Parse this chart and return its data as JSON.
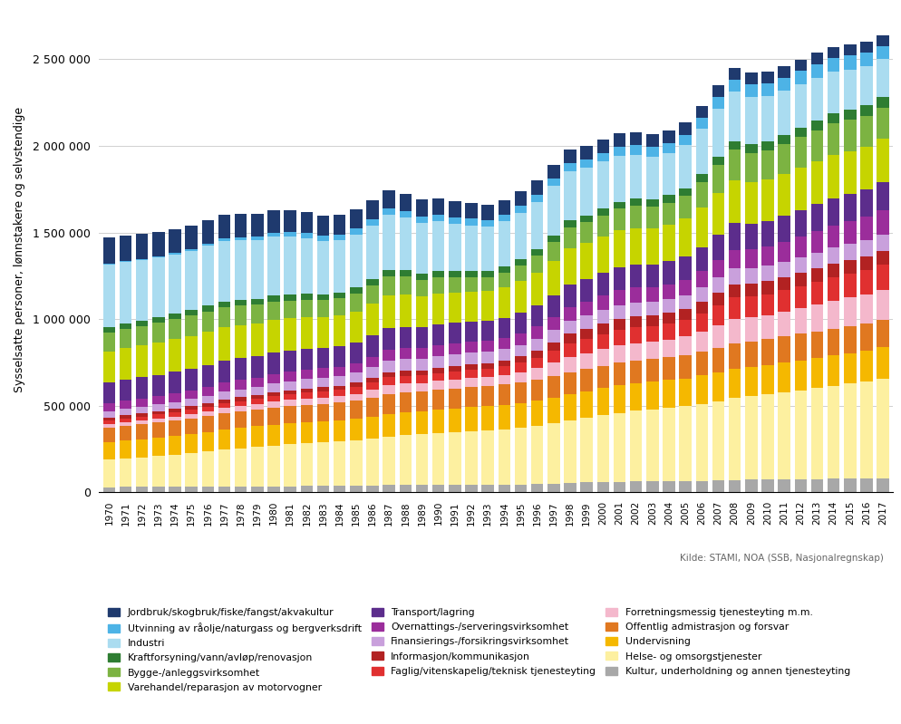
{
  "years": [
    1970,
    1971,
    1972,
    1973,
    1974,
    1975,
    1976,
    1977,
    1978,
    1979,
    1980,
    1981,
    1982,
    1983,
    1984,
    1985,
    1986,
    1987,
    1988,
    1989,
    1990,
    1991,
    1992,
    1993,
    1994,
    1995,
    1996,
    1997,
    1998,
    1999,
    2000,
    2001,
    2002,
    2003,
    2004,
    2005,
    2006,
    2007,
    2008,
    2009,
    2010,
    2011,
    2012,
    2013,
    2014,
    2015,
    2016,
    2017
  ],
  "series_order": [
    "Kultur, underholdning og annen tjenesteyting",
    "Helse- og omsorgstjenester",
    "Undervisning",
    "Offentlig admistrasjon og forsvar",
    "Forretningsmessig tjenesteyting m.m.",
    "Faglig/vitenskapelig/teknisk tjenesteyting",
    "Informasjon/kommunikasjon",
    "Finansierings-/forsikringsvirksomhet",
    "Overnattings-/serveringsvirksomhet",
    "Transport/lagring",
    "Varehandel/reparasjon av motorvogner",
    "Bygge-/anleggsvirksomhet",
    "Kraftforsyning/vann/avløp/renovasjon",
    "Industri",
    "Utvinning av råolje/naturgass og bergverksdrift",
    "Jordbruk/skogbruk/fiske/fangst/akvakultur"
  ],
  "series": [
    {
      "name": "Jordbruk/skogbruk/fiske/fangst/akvakultur",
      "color": "#1f3a6e",
      "values": [
        150000,
        148000,
        144000,
        142000,
        140000,
        138000,
        136000,
        134000,
        132000,
        130000,
        127000,
        124000,
        121000,
        118000,
        115000,
        112000,
        109000,
        106000,
        103000,
        100000,
        97000,
        94000,
        91000,
        88000,
        86000,
        84000,
        82000,
        80000,
        79000,
        78000,
        77000,
        76000,
        75000,
        74000,
        73000,
        72000,
        71000,
        70000,
        69000,
        68000,
        67000,
        66000,
        65000,
        64000,
        63000,
        62000,
        61000,
        60000
      ]
    },
    {
      "name": "Utvinning av råolje/naturgass og bergverksdrift",
      "color": "#4db3e6",
      "values": [
        5000,
        5500,
        6000,
        7000,
        8000,
        10000,
        12000,
        15000,
        18000,
        21000,
        25000,
        28000,
        30000,
        32000,
        33000,
        34000,
        35000,
        36000,
        36000,
        36000,
        37000,
        37000,
        38000,
        38000,
        39000,
        40000,
        41000,
        43000,
        46000,
        48000,
        50000,
        52000,
        54000,
        55000,
        56000,
        57000,
        60000,
        65000,
        70000,
        72000,
        74000,
        76000,
        78000,
        80000,
        82000,
        84000,
        80000,
        76000
      ]
    },
    {
      "name": "Industri",
      "color": "#aadcf0",
      "values": [
        360000,
        355000,
        350000,
        345000,
        340000,
        340000,
        345000,
        350000,
        345000,
        340000,
        340000,
        335000,
        320000,
        305000,
        300000,
        305000,
        310000,
        320000,
        305000,
        290000,
        285000,
        275000,
        265000,
        255000,
        260000,
        270000,
        275000,
        285000,
        285000,
        275000,
        270000,
        265000,
        255000,
        245000,
        245000,
        250000,
        265000,
        280000,
        285000,
        270000,
        260000,
        255000,
        250000,
        245000,
        240000,
        230000,
        225000,
        220000
      ]
    },
    {
      "name": "Kraftforsyning/vann/avløp/renovasjon",
      "color": "#2e7d32",
      "values": [
        30000,
        30000,
        31000,
        31000,
        32000,
        32000,
        33000,
        33000,
        34000,
        34000,
        35000,
        35000,
        35000,
        35000,
        35000,
        36000,
        36000,
        36000,
        36000,
        36000,
        36000,
        36000,
        36000,
        36000,
        36000,
        36000,
        37000,
        37000,
        38000,
        38000,
        40000,
        41000,
        42000,
        43000,
        44000,
        45000,
        46000,
        48000,
        50000,
        52000,
        53000,
        54000,
        55000,
        57000,
        58000,
        59000,
        60000,
        61000
      ]
    },
    {
      "name": "Bygge-/anleggsvirksomhet",
      "color": "#7cb342",
      "values": [
        110000,
        112000,
        113000,
        115000,
        118000,
        120000,
        118000,
        116000,
        112000,
        108000,
        105000,
        103000,
        102000,
        100000,
        100000,
        102000,
        105000,
        110000,
        105000,
        98000,
        94000,
        88000,
        83000,
        82000,
        85000,
        90000,
        97000,
        110000,
        120000,
        120000,
        122000,
        124000,
        126000,
        124000,
        126000,
        132000,
        145000,
        160000,
        175000,
        170000,
        168000,
        172000,
        176000,
        180000,
        182000,
        180000,
        178000,
        180000
      ]
    },
    {
      "name": "Varehandel/reparasjon av motorvogner",
      "color": "#c6d400",
      "values": [
        180000,
        182000,
        184000,
        186000,
        188000,
        188000,
        190000,
        192000,
        190000,
        188000,
        188000,
        185000,
        180000,
        175000,
        175000,
        178000,
        185000,
        192000,
        185000,
        178000,
        178000,
        174000,
        172000,
        170000,
        175000,
        182000,
        190000,
        200000,
        210000,
        208000,
        210000,
        212000,
        210000,
        208000,
        212000,
        218000,
        228000,
        240000,
        248000,
        238000,
        238000,
        240000,
        245000,
        248000,
        250000,
        248000,
        248000,
        252000
      ]
    },
    {
      "name": "Transport/lagring",
      "color": "#5c2d8c",
      "values": [
        120000,
        121000,
        122000,
        123000,
        124000,
        125000,
        126000,
        127000,
        126000,
        125000,
        124000,
        122000,
        120000,
        118000,
        118000,
        120000,
        122000,
        124000,
        122000,
        120000,
        120000,
        118000,
        116000,
        115000,
        116000,
        118000,
        120000,
        125000,
        130000,
        130000,
        132000,
        134000,
        134000,
        132000,
        132000,
        134000,
        140000,
        148000,
        154000,
        150000,
        150000,
        152000,
        154000,
        156000,
        158000,
        158000,
        158000,
        160000
      ]
    },
    {
      "name": "Overnattings-/serveringsvirksomhet",
      "color": "#9b2d9b",
      "values": [
        45000,
        46000,
        47000,
        48000,
        49000,
        50000,
        52000,
        54000,
        54000,
        54000,
        55000,
        55000,
        55000,
        54000,
        54000,
        56000,
        58000,
        62000,
        62000,
        60000,
        62000,
        62000,
        63000,
        63000,
        65000,
        68000,
        72000,
        76000,
        80000,
        82000,
        84000,
        86000,
        86000,
        85000,
        86000,
        88000,
        93000,
        100000,
        108000,
        108000,
        110000,
        114000,
        118000,
        122000,
        126000,
        130000,
        134000,
        140000
      ]
    },
    {
      "name": "Finansierings-/forsikringsvirksomhet",
      "color": "#c9a0dc",
      "values": [
        36000,
        37000,
        38000,
        39000,
        40000,
        41000,
        43000,
        45000,
        46000,
        47000,
        50000,
        52000,
        54000,
        55000,
        56000,
        58000,
        62000,
        66000,
        67000,
        67000,
        68000,
        68000,
        67000,
        66000,
        65000,
        66000,
        68000,
        71000,
        75000,
        76000,
        78000,
        80000,
        80000,
        79000,
        79000,
        80000,
        83000,
        87000,
        90000,
        88000,
        88000,
        89000,
        90000,
        91000,
        92000,
        92000,
        93000,
        94000
      ]
    },
    {
      "name": "Informasjon/kommunikasjon",
      "color": "#b22222",
      "values": [
        18000,
        18500,
        19000,
        19500,
        20000,
        20500,
        21000,
        21500,
        22000,
        22500,
        23000,
        23500,
        24000,
        24500,
        25000,
        26000,
        28000,
        30000,
        31000,
        31000,
        32000,
        32000,
        32000,
        32000,
        33000,
        36000,
        40000,
        48000,
        56000,
        60000,
        62000,
        64000,
        64000,
        62000,
        62000,
        64000,
        68000,
        74000,
        78000,
        76000,
        75000,
        76000,
        77000,
        78000,
        79000,
        79000,
        80000,
        82000
      ]
    },
    {
      "name": "Faglig/vitenskapelig/teknisk tjenesteyting",
      "color": "#e03030",
      "values": [
        20000,
        21000,
        22000,
        23000,
        24000,
        25000,
        26000,
        28000,
        29000,
        30000,
        32000,
        33000,
        34000,
        35000,
        36000,
        38000,
        42000,
        46000,
        46000,
        44000,
        45000,
        46000,
        47000,
        48000,
        50000,
        54000,
        60000,
        68000,
        78000,
        80000,
        84000,
        88000,
        90000,
        90000,
        92000,
        96000,
        104000,
        114000,
        124000,
        120000,
        120000,
        124000,
        128000,
        132000,
        136000,
        138000,
        140000,
        144000
      ]
    },
    {
      "name": "Forretningsmessig tjenesteyting m.m.",
      "color": "#f4b8cc",
      "values": [
        20000,
        21000,
        22000,
        23000,
        24000,
        26000,
        28000,
        30000,
        31000,
        32000,
        34000,
        35000,
        36000,
        36000,
        37000,
        40000,
        46000,
        52000,
        51000,
        49000,
        51000,
        52000,
        53000,
        53000,
        56000,
        62000,
        70000,
        80000,
        90000,
        92000,
        96000,
        100000,
        100000,
        98000,
        100000,
        106000,
        116000,
        130000,
        142000,
        138000,
        138000,
        142000,
        148000,
        154000,
        160000,
        164000,
        168000,
        174000
      ]
    },
    {
      "name": "Offentlig admistrasjon og forsvar",
      "color": "#e07820",
      "values": [
        85000,
        86000,
        87000,
        88000,
        89000,
        90000,
        92000,
        94000,
        95000,
        96000,
        98000,
        99000,
        100000,
        101000,
        102000,
        104000,
        108000,
        112000,
        113000,
        113000,
        115000,
        116000,
        117000,
        118000,
        118000,
        118000,
        120000,
        122000,
        125000,
        127000,
        130000,
        132000,
        133000,
        133000,
        134000,
        135000,
        138000,
        142000,
        146000,
        148000,
        150000,
        152000,
        153000,
        154000,
        155000,
        156000,
        157000,
        158000
      ]
    },
    {
      "name": "Undervisning",
      "color": "#f5b800",
      "values": [
        100000,
        102000,
        104000,
        106000,
        108000,
        110000,
        113000,
        116000,
        118000,
        119000,
        120000,
        121000,
        122000,
        122000,
        123000,
        125000,
        128000,
        132000,
        133000,
        133000,
        135000,
        136000,
        137000,
        138000,
        139000,
        140000,
        142000,
        146000,
        150000,
        153000,
        156000,
        158000,
        159000,
        160000,
        161000,
        162000,
        164000,
        166000,
        168000,
        169000,
        170000,
        171000,
        172000,
        173000,
        174000,
        175000,
        176000,
        178000
      ]
    },
    {
      "name": "Helse- og omsorgstjenester",
      "color": "#fdf0a0",
      "values": [
        160000,
        166000,
        172000,
        178000,
        185000,
        193000,
        202000,
        212000,
        220000,
        228000,
        236000,
        243000,
        248000,
        252000,
        256000,
        262000,
        270000,
        280000,
        287000,
        292000,
        298000,
        304000,
        310000,
        314000,
        320000,
        328000,
        338000,
        350000,
        362000,
        374000,
        386000,
        398000,
        408000,
        416000,
        424000,
        432000,
        444000,
        458000,
        472000,
        482000,
        492000,
        502000,
        514000,
        526000,
        538000,
        550000,
        562000,
        576000
      ]
    },
    {
      "name": "Kultur, underholdning og annen tjenesteyting",
      "color": "#a8a8a8",
      "values": [
        30000,
        30500,
        31000,
        31500,
        32000,
        32500,
        33000,
        33500,
        34000,
        34500,
        35000,
        35500,
        36000,
        36500,
        37000,
        38000,
        40000,
        42000,
        43000,
        43000,
        44000,
        44000,
        44000,
        44000,
        45000,
        46000,
        48000,
        51000,
        55000,
        57000,
        59000,
        61000,
        62000,
        62000,
        63000,
        64000,
        66000,
        69000,
        72000,
        73000,
        74000,
        75000,
        76000,
        77000,
        78000,
        79000,
        80000,
        82000
      ]
    }
  ],
  "legend_order": [
    "Jordbruk/skogbruk/fiske/fangst/akvakultur",
    "Utvinning av råolje/naturgass og bergverksdrift",
    "Industri",
    "Kraftforsyning/vann/avløp/renovasjon",
    "Bygge-/anleggsvirksomhet",
    "Varehandel/reparasjon av motorvogner",
    "Transport/lagring",
    "Overnattings-/serveringsvirksomhet",
    "Finansierings-/forsikringsvirksomhet",
    "Informasjon/kommunikasjon",
    "Faglig/vitenskapelig/teknisk tjenesteyting",
    "Forretningsmessig tjenesteyting m.m.",
    "Offentlig admistrasjon og forsvar",
    "Undervisning",
    "Helse- og omsorgstjenester",
    "Kultur, underholdning og annen tjenesteyting"
  ],
  "ylabel": "Sysselsatte personer, lønnstakere og selvstendige",
  "source": "Kilde: STAMI, NOA (SSB, Nasjonalregnskap)",
  "ylim": [
    0,
    2800000
  ],
  "yticks": [
    0,
    500000,
    1000000,
    1500000,
    2000000,
    2500000
  ],
  "ytick_labels": [
    "0",
    "500 000",
    "1 000 000",
    "1 500 000",
    "2 000 000",
    "2 500 000"
  ],
  "background_color": "#ffffff",
  "grid_color": "#d0d0d0"
}
